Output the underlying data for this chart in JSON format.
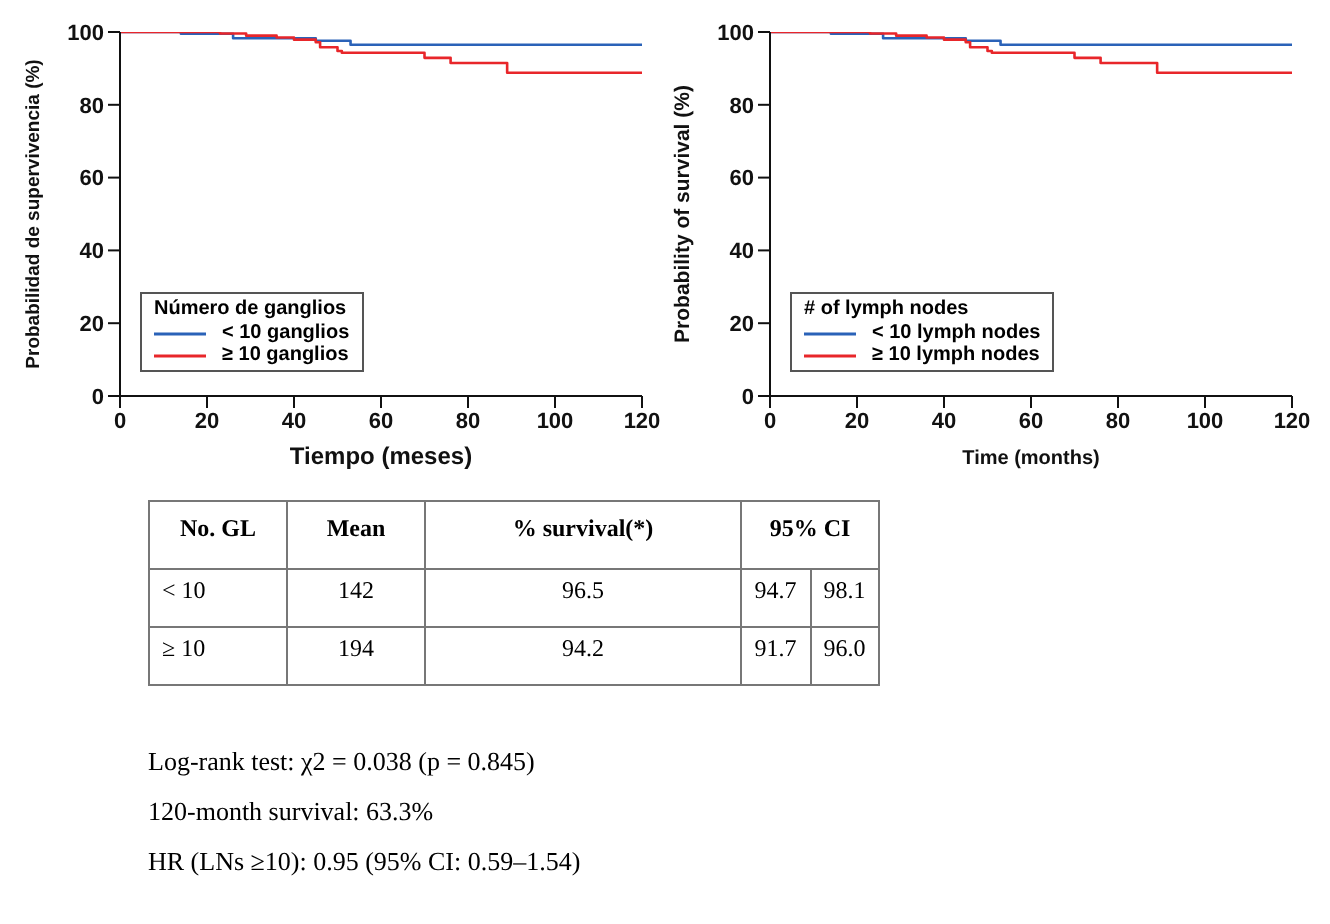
{
  "chart_data": [
    {
      "type": "step",
      "xlabel": "Tiempo (meses)",
      "ylabel": "Probabilidad de supervivencia (%)",
      "legend_title": "Número de ganglios",
      "legend": "bottom left",
      "xlim": [
        0,
        120
      ],
      "xticks": [
        0,
        20,
        40,
        60,
        80,
        100,
        120
      ],
      "ylim": [
        0,
        100
      ],
      "yticks": [
        0,
        20,
        40,
        60,
        80,
        100
      ],
      "series": [
        {
          "name": "< 10 ganglios",
          "color": "#2a62b8",
          "x": [
            0,
            14,
            26,
            45,
            53,
            120
          ],
          "values": [
            100,
            99.5,
            98.3,
            97.6,
            96.5,
            96.5
          ]
        },
        {
          "name": "≥ 10 ganglios",
          "color": "#e8262a",
          "x": [
            0,
            23,
            29,
            36,
            40,
            45,
            46,
            50,
            51,
            70,
            76,
            89,
            120
          ],
          "values": [
            100,
            99.6,
            99,
            98.5,
            97.9,
            97.2,
            95.8,
            94.8,
            94.3,
            92.9,
            91.5,
            88.8,
            88.8
          ]
        }
      ]
    },
    {
      "type": "step",
      "xlabel": "Time (months)",
      "ylabel": "Probability of survival (%)",
      "legend_title": "# of lymph nodes",
      "legend": "bottom left",
      "xlim": [
        0,
        120
      ],
      "xticks": [
        0,
        20,
        40,
        60,
        80,
        100,
        120
      ],
      "ylim": [
        0,
        100
      ],
      "yticks": [
        0,
        20,
        40,
        60,
        80,
        100
      ],
      "series": [
        {
          "name": "< 10 lymph nodes",
          "color": "#2a62b8",
          "x": [
            0,
            14,
            26,
            45,
            53,
            120
          ],
          "values": [
            100,
            99.5,
            98.3,
            97.6,
            96.5,
            96.5
          ]
        },
        {
          "name": "≥ 10 lymph nodes",
          "color": "#e8262a",
          "x": [
            0,
            23,
            29,
            36,
            40,
            45,
            46,
            50,
            51,
            70,
            76,
            89,
            120
          ],
          "values": [
            100,
            99.6,
            99,
            98.5,
            97.9,
            97.2,
            95.8,
            94.8,
            94.3,
            92.9,
            91.5,
            88.8,
            88.8
          ]
        }
      ]
    },
    {
      "type": "other",
      "annotations": [
        "No. GL",
        "Mean",
        "% survival(*)",
        "95% CI",
        "< 10",
        "142",
        "96.5",
        "94.7",
        "98.1",
        "≥ 10",
        "194",
        "94.2",
        "91.7",
        "96.0",
        "Log-rank test: χ2 = 0.038 (p = 0.845)",
        "120-month survival: 63.3%",
        "HR (LNs ≥10): 0.95 (95% CI: 0.59–1.54)"
      ]
    }
  ]
}
